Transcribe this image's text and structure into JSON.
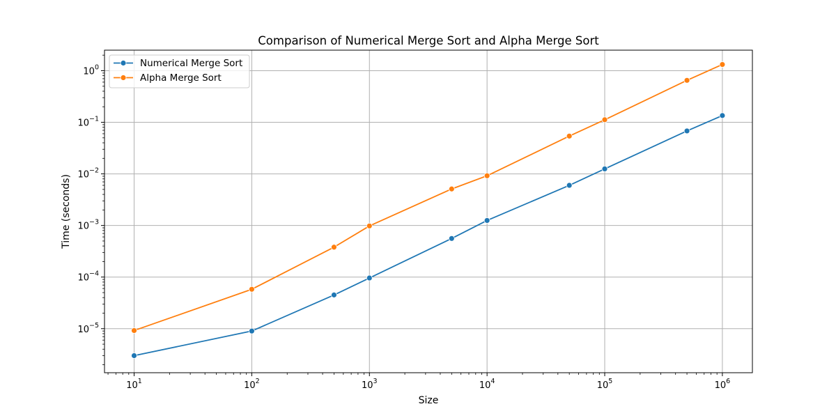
{
  "chart_data": {
    "type": "line",
    "title": "Comparison of Numerical Merge Sort and Alpha Merge Sort",
    "xlabel": "Size",
    "ylabel": "Time (seconds)",
    "xscale": "log",
    "yscale": "log",
    "xlim": [
      5.6,
      1800000.0
    ],
    "ylim": [
      1.4e-06,
      2.5
    ],
    "grid": true,
    "legend_position": "top-left",
    "x_tick_labels": [
      {
        "base": "10",
        "exp": "1"
      },
      {
        "base": "10",
        "exp": "2"
      },
      {
        "base": "10",
        "exp": "3"
      },
      {
        "base": "10",
        "exp": "4"
      },
      {
        "base": "10",
        "exp": "5"
      },
      {
        "base": "10",
        "exp": "6"
      }
    ],
    "y_tick_labels": [
      {
        "base": "10",
        "exp": "−5"
      },
      {
        "base": "10",
        "exp": "−4"
      },
      {
        "base": "10",
        "exp": "−3"
      },
      {
        "base": "10",
        "exp": "−2"
      },
      {
        "base": "10",
        "exp": "−1"
      },
      {
        "base": "10",
        "exp": "0"
      }
    ],
    "series": [
      {
        "name": "Numerical Merge Sort",
        "color": "#1f77b4",
        "marker": "circle",
        "x": [
          10,
          100,
          500,
          1000,
          5000,
          10000,
          50000,
          100000,
          500000,
          1000000
        ],
        "y": [
          3e-06,
          9e-06,
          4.5e-05,
          9.6e-05,
          0.00056,
          0.00125,
          0.006,
          0.0125,
          0.068,
          0.135
        ]
      },
      {
        "name": "Alpha Merge Sort",
        "color": "#ff7f0e",
        "marker": "circle",
        "x": [
          10,
          100,
          500,
          1000,
          5000,
          10000,
          50000,
          100000,
          500000,
          1000000
        ],
        "y": [
          9.2e-06,
          5.8e-05,
          0.00038,
          0.00098,
          0.0051,
          0.0092,
          0.054,
          0.112,
          0.65,
          1.32
        ]
      }
    ]
  }
}
